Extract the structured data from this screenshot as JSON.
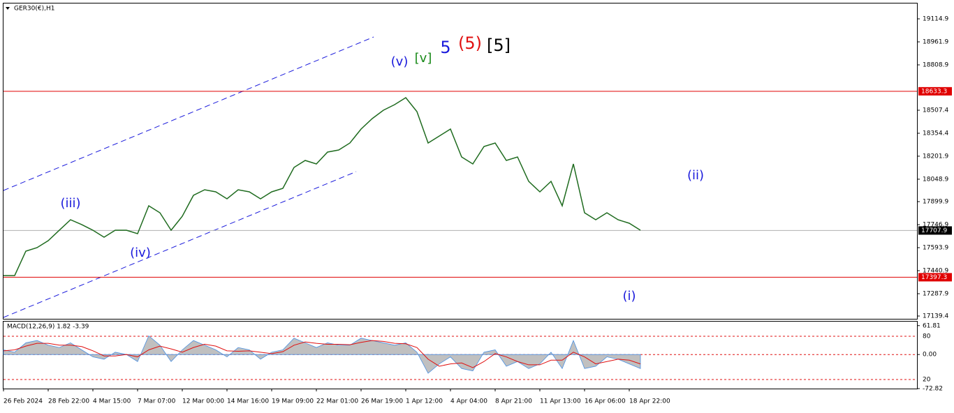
{
  "chart_data": {
    "type": "line",
    "title": "GER30(€),H1",
    "categories": [
      "26 Feb 2024",
      null,
      null,
      null,
      "28 Feb 22:00",
      null,
      null,
      null,
      "4 Mar 15:00",
      null,
      null,
      null,
      "7 Mar 07:00",
      null,
      null,
      null,
      "12 Mar 00:00",
      null,
      null,
      null,
      "14 Mar 16:00",
      null,
      null,
      null,
      "19 Mar 09:00",
      null,
      null,
      null,
      "22 Mar 01:00",
      null,
      null,
      null,
      "26 Mar 19:00",
      null,
      null,
      null,
      "1 Apr 12:00",
      null,
      null,
      null,
      "4 Apr 04:00",
      null,
      null,
      null,
      "8 Apr 21:00",
      null,
      null,
      null,
      "11 Apr 13:00",
      null,
      null,
      null,
      "16 Apr 06:00",
      null,
      null,
      null,
      "18 Apr 22:00",
      null
    ],
    "values": [
      17408.5,
      17408.5,
      17570.8,
      17593.9,
      17640.3,
      17709.9,
      17779.4,
      17747.0,
      17709.9,
      17663.5,
      17709.9,
      17709.9,
      17686.7,
      17872.2,
      17825.8,
      17709.9,
      17802.6,
      17941.7,
      17978.8,
      17964.9,
      17918.5,
      17978.8,
      17964.9,
      17918.5,
      17964.9,
      17988.1,
      18127.2,
      18173.6,
      18150.4,
      18229.2,
      18243.1,
      18289.5,
      18382.2,
      18451.8,
      18507.4,
      18544.5,
      18590.9,
      18498.2,
      18289.5,
      18335.9,
      18382.2,
      18196.8,
      18150.4,
      18266.3,
      18289.5,
      18173.6,
      18196.8,
      18034.5,
      17964.9,
      18034.5,
      17872.2,
      18150.4,
      17825.8,
      17779.4,
      17825.8,
      17779.4,
      17756.2,
      17709.9
    ],
    "color": "#1f6b1f",
    "ylim": [
      17120.9,
      19216.9
    ],
    "yticks": [
      19114.9,
      18961.9,
      18808.9,
      18507.4,
      18354.4,
      18201.9,
      18048.9,
      17899.9,
      17746.9,
      17593.9,
      17440.9,
      17287.9,
      17139.4
    ],
    "hlines": [
      {
        "value": 18633.3,
        "color": "#e00000"
      },
      {
        "value": 17707.9,
        "color": "#b0b0b0"
      },
      {
        "value": 17397.3,
        "color": "#e00000"
      }
    ],
    "annotations": [
      {
        "text": "(iii)",
        "color": "#1a1adc"
      },
      {
        "text": "(iv)",
        "color": "#1a1adc"
      },
      {
        "text": "(v)",
        "color": "#1a1adc"
      },
      {
        "text": "[v]",
        "color": "#1a8a1a"
      },
      {
        "text": "5",
        "color": "#1a1adc"
      },
      {
        "text": "(5)",
        "color": "#e01010"
      },
      {
        "text": "[5]",
        "color": "#000000"
      },
      {
        "text": "(i)",
        "color": "#1a1adc"
      },
      {
        "text": "(ii)",
        "color": "#1a1adc"
      }
    ],
    "macd": {
      "title": "MACD(12,26,9) 1.82 -3.39",
      "ylim": [
        -72.82,
        70.4
      ],
      "yticks": [
        61.81,
        {
          "value": 0,
          "label": "0.00"
        },
        -72.82
      ],
      "y2lim": [
        7.4,
        100.3
      ],
      "y2ticks": [
        80,
        20
      ],
      "histogram": {
        "color": "#c0c0c0",
        "values": [
          10,
          5,
          25,
          30,
          20,
          15,
          25,
          10,
          -5,
          -10,
          5,
          0,
          -15,
          40,
          20,
          -15,
          10,
          30,
          20,
          10,
          -5,
          15,
          10,
          -10,
          5,
          10,
          35,
          25,
          15,
          25,
          20,
          20,
          35,
          30,
          25,
          20,
          25,
          5,
          -40,
          -20,
          -5,
          -30,
          -35,
          5,
          10,
          -25,
          -15,
          -30,
          -20,
          5,
          -30,
          30,
          -30,
          -25,
          -5,
          -10,
          -20,
          -30
        ]
      },
      "signal": {
        "color": "#e01010",
        "values": [
          8,
          10,
          18,
          24,
          24,
          20,
          20,
          17,
          8,
          -3,
          -3,
          0,
          -5,
          10,
          18,
          12,
          5,
          15,
          22,
          18,
          8,
          7,
          8,
          5,
          2,
          6,
          20,
          27,
          24,
          22,
          22,
          21,
          26,
          30,
          28,
          24,
          23,
          15,
          -10,
          -25,
          -20,
          -18,
          -28,
          -15,
          2,
          -5,
          -15,
          -22,
          -22,
          -12,
          -12,
          5,
          -5,
          -20,
          -15,
          -10,
          -12,
          -20
        ]
      }
    }
  }
}
